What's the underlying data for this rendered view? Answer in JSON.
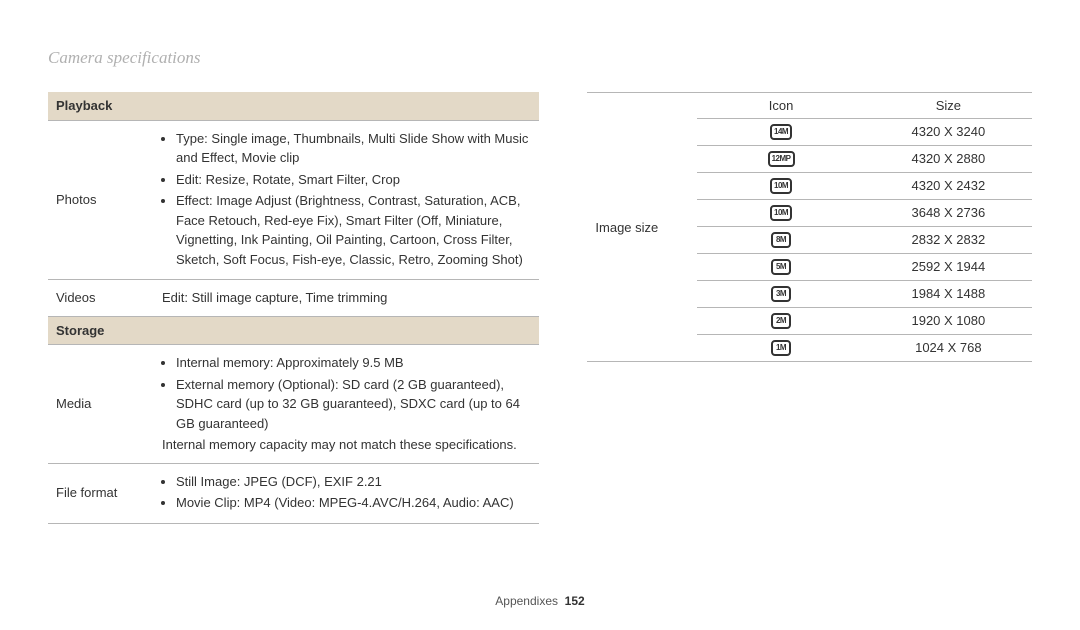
{
  "pageTitle": "Camera specifications",
  "footer": {
    "section": "Appendixes",
    "page": "152"
  },
  "left": {
    "playbackHeader": "Playback",
    "photos": {
      "label": "Photos",
      "bullets": [
        "Type: Single image, Thumbnails, Multi Slide Show with Music and Effect, Movie clip",
        "Edit: Resize, Rotate, Smart Filter, Crop",
        "Effect: Image Adjust (Brightness, Contrast, Saturation, ACB, Face Retouch, Red-eye Fix), Smart Filter (Off, Miniature, Vignetting, Ink Painting, Oil Painting, Cartoon, Cross Filter, Sketch, Soft Focus, Fish-eye, Classic, Retro, Zooming Shot)"
      ]
    },
    "videos": {
      "label": "Videos",
      "text": "Edit: Still image capture, Time trimming"
    },
    "storageHeader": "Storage",
    "media": {
      "label": "Media",
      "bullets": [
        "Internal memory: Approximately 9.5 MB",
        "External memory (Optional): SD card (2 GB guaranteed), SDHC card (up to 32 GB guaranteed), SDXC card (up to 64 GB guaranteed)"
      ],
      "note": "Internal memory capacity may not match these specifications."
    },
    "fileformat": {
      "label": "File format",
      "bullets": [
        "Still Image: JPEG (DCF), EXIF 2.21",
        "Movie Clip: MP4 (Video: MPEG-4.AVC/H.264, Audio: AAC)"
      ]
    }
  },
  "right": {
    "outerLabel": "Image size",
    "headerIcon": "Icon",
    "headerSize": "Size",
    "rows": [
      {
        "icon": "14M",
        "size": "4320 X 3240"
      },
      {
        "icon": "12MP",
        "size": "4320 X 2880"
      },
      {
        "icon": "10M",
        "size": "4320 X 2432"
      },
      {
        "icon": "10M",
        "size": "3648 X 2736"
      },
      {
        "icon": "8M",
        "size": "2832 X 2832"
      },
      {
        "icon": "5M",
        "size": "2592 X 1944"
      },
      {
        "icon": "3M",
        "size": "1984 X 1488"
      },
      {
        "icon": "2M",
        "size": "1920 X 1080"
      },
      {
        "icon": "1M",
        "size": "1024 X 768"
      }
    ]
  }
}
